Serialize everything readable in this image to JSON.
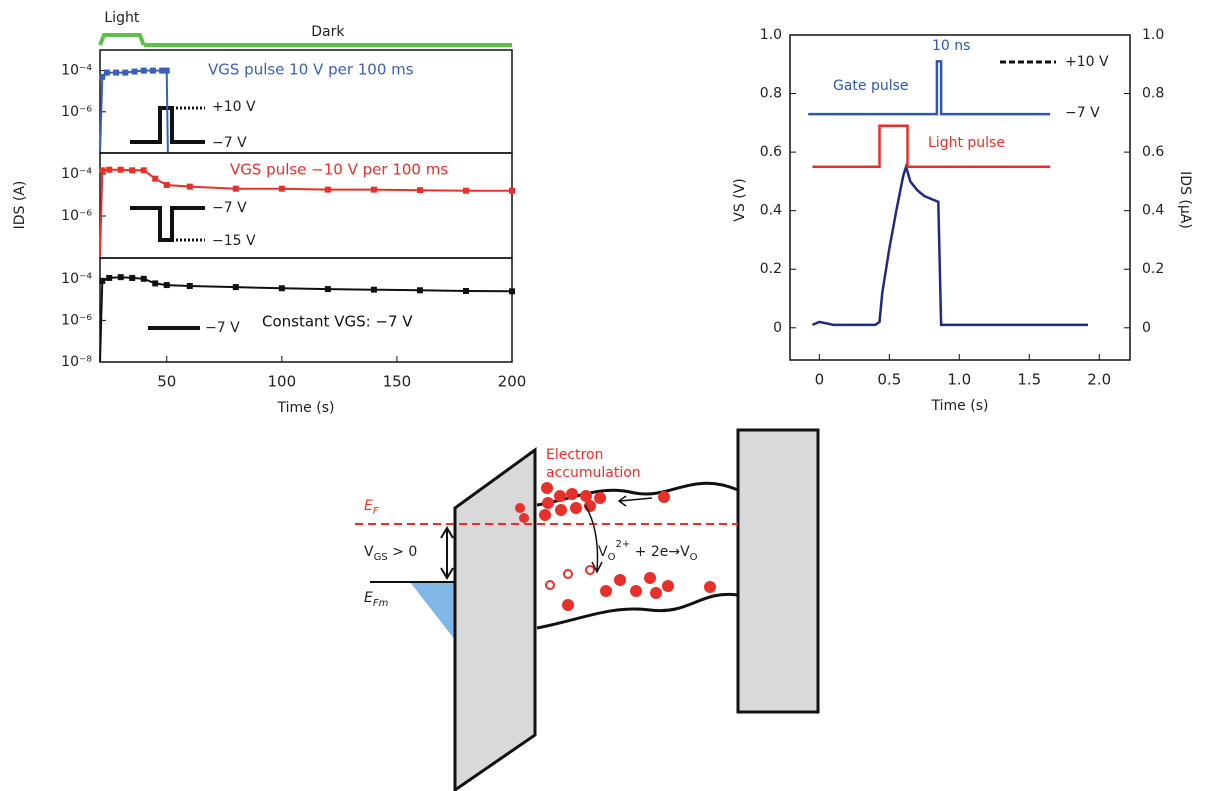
{
  "chart_data": [
    {
      "type": "line",
      "log_y": true,
      "xlim": [
        21,
        200
      ],
      "ylim": [
        1e-08,
        0.001
      ],
      "yticks": [
        {
          "value": 0.0001,
          "label": "10⁻⁴"
        },
        {
          "value": 1e-06,
          "label": "10⁻⁶"
        }
      ],
      "phases": [
        {
          "label": "Light",
          "start": 21,
          "end": 40
        },
        {
          "label": "Dark",
          "start": 40,
          "end": 200
        }
      ],
      "x": [
        21,
        22,
        24,
        28,
        32,
        36,
        40,
        44,
        48,
        50,
        50.5
      ],
      "series": [
        {
          "name": "VGS pulse 10 V per 100 ms",
          "color": "#3a5fb8",
          "values": [
            1e-08,
            5e-05,
            8e-05,
            8e-05,
            8e-05,
            9e-05,
            0.0001,
            0.0001,
            0.0001,
            0.0001,
            1e-08
          ]
        }
      ],
      "inset_labels": [
        "+10 V",
        "−7 V"
      ]
    },
    {
      "type": "line",
      "log_y": true,
      "xlim": [
        21,
        200
      ],
      "ylim": [
        1e-08,
        0.001
      ],
      "yticks": [
        {
          "value": 0.0001,
          "label": "10⁻⁴"
        },
        {
          "value": 1e-06,
          "label": "10⁻⁶"
        }
      ],
      "ylabel": "IDS (A)",
      "x": [
        21,
        22,
        25,
        30,
        35,
        40,
        45,
        50,
        60,
        80,
        100,
        120,
        140,
        160,
        180,
        200
      ],
      "series": [
        {
          "name": "VGS pulse −10 V per 100 ms",
          "color": "#e8302a",
          "values": [
            1e-08,
            0.00015,
            0.00016,
            0.00016,
            0.00015,
            0.00015,
            6e-05,
            3e-05,
            2.5e-05,
            2e-05,
            2e-05,
            1.8e-05,
            1.8e-05,
            1.7e-05,
            1.6e-05,
            1.6e-05
          ]
        }
      ],
      "inset_labels": [
        "−7 V",
        "−15 V"
      ]
    },
    {
      "type": "line",
      "log_y": true,
      "xlim": [
        21,
        200
      ],
      "ylim": [
        1e-08,
        0.001
      ],
      "yticks": [
        {
          "value": 0.0001,
          "label": "10⁻⁴"
        },
        {
          "value": 1e-06,
          "label": "10⁻⁶"
        },
        {
          "value": 1e-08,
          "label": "10⁻⁸"
        }
      ],
      "xticks": [
        50,
        100,
        150,
        200
      ],
      "xlabel": "Time (s)",
      "x": [
        21,
        22,
        25,
        30,
        35,
        40,
        45,
        50,
        60,
        80,
        100,
        120,
        140,
        160,
        180,
        200
      ],
      "series": [
        {
          "name": "Constant VGS: −7 V",
          "color": "#111111",
          "values": [
            1e-08,
            8e-05,
            0.00011,
            0.00012,
            0.00011,
            0.0001,
            6e-05,
            5e-05,
            4.5e-05,
            4e-05,
            3.5e-05,
            3.2e-05,
            3e-05,
            2.8e-05,
            2.6e-05,
            2.5e-05
          ]
        }
      ],
      "inset_labels": [
        "−7 V"
      ]
    },
    {
      "type": "line",
      "xlim": [
        -0.21,
        2.22
      ],
      "ylim": [
        -0.11,
        1.0
      ],
      "y2lim": [
        -0.11,
        1.0
      ],
      "xticks": [
        0,
        0.5,
        {
          "value": 1,
          "label": "1.0"
        },
        1.5,
        {
          "value": 2,
          "label": "2.0"
        }
      ],
      "yticks": [
        0,
        0.2,
        0.4,
        0.6,
        0.8,
        {
          "value": 1,
          "label": "1.0"
        }
      ],
      "y2ticks": [
        0,
        0.2,
        0.4,
        0.6,
        0.8,
        {
          "value": 1,
          "label": "1.0"
        }
      ],
      "xlabel": "Time (s)",
      "ylabel": "VS (V)",
      "y2label": "IDS (μA)",
      "series": [
        {
          "color": "#1f2a80",
          "axis": "y2",
          "x": [
            -0.05,
            0,
            0.1,
            0.2,
            0.3,
            0.4,
            0.43,
            0.45,
            0.5,
            0.55,
            0.6,
            0.62,
            0.65,
            0.7,
            0.75,
            0.8,
            0.85,
            0.87,
            0.9,
            1.0,
            1.2,
            1.4,
            1.6,
            1.8,
            1.92
          ],
          "values": [
            0.01,
            0.02,
            0.01,
            0.01,
            0.01,
            0.01,
            0.02,
            0.12,
            0.27,
            0.4,
            0.52,
            0.55,
            0.5,
            0.47,
            0.45,
            0.44,
            0.43,
            0.01,
            0.01,
            0.01,
            0.01,
            0.01,
            0.01,
            0.01,
            0.01
          ]
        },
        {
          "name": "Gate pulse",
          "color": "#2f56b0",
          "x": [
            -0.08,
            0.84,
            0.84,
            0.87,
            0.87,
            1.65
          ],
          "values": [
            0.73,
            0.73,
            0.91,
            0.91,
            0.73,
            0.73
          ]
        },
        {
          "name": "Light pulse",
          "color": "#e8302a",
          "x": [
            -0.05,
            0.43,
            0.43,
            0.63,
            0.63,
            1.65
          ],
          "values": [
            0.55,
            0.55,
            0.69,
            0.69,
            0.55,
            0.55
          ]
        }
      ],
      "annotations": [
        "10 ns",
        "+10 V",
        "−7 V"
      ]
    }
  ],
  "diagram": {
    "accumulation": [
      "Electron",
      "accumulation"
    ],
    "fermi_level": [
      "E",
      "F"
    ],
    "bias": [
      "V",
      "GS",
      " > 0"
    ],
    "metal_fermi_level": [
      "E",
      "Fm"
    ],
    "reaction": [
      "V",
      "O",
      "2+",
      " + 2e→V",
      "O"
    ]
  }
}
